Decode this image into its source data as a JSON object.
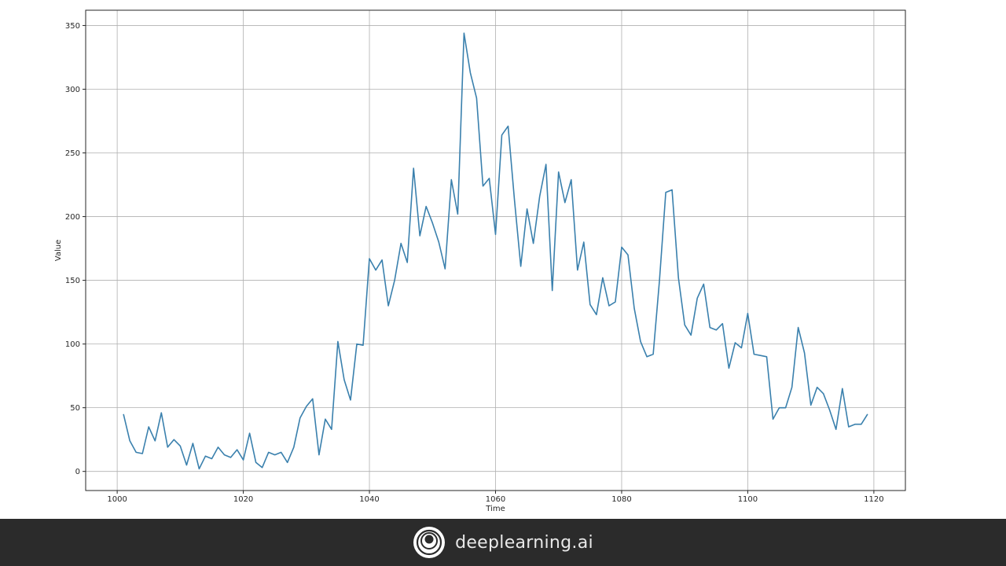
{
  "chart_data": {
    "type": "line",
    "title": "",
    "xlabel": "Time",
    "ylabel": "Value",
    "xlim": [
      995,
      1125
    ],
    "ylim": [
      -15,
      362
    ],
    "xticks": [
      1000,
      1020,
      1040,
      1060,
      1080,
      1100,
      1120
    ],
    "yticks": [
      0,
      50,
      100,
      150,
      200,
      250,
      300,
      350
    ],
    "grid": true,
    "series": [
      {
        "color": "#3a80ad",
        "x": [
          1001,
          1002,
          1003,
          1004,
          1005,
          1006,
          1007,
          1008,
          1009,
          1010,
          1011,
          1012,
          1013,
          1014,
          1015,
          1016,
          1017,
          1018,
          1019,
          1020,
          1021,
          1022,
          1023,
          1024,
          1025,
          1026,
          1027,
          1028,
          1029,
          1030,
          1031,
          1032,
          1033,
          1034,
          1035,
          1036,
          1037,
          1038,
          1039,
          1040,
          1041,
          1042,
          1043,
          1044,
          1045,
          1046,
          1047,
          1048,
          1049,
          1050,
          1051,
          1052,
          1053,
          1054,
          1055,
          1056,
          1057,
          1058,
          1059,
          1060,
          1061,
          1062,
          1063,
          1064,
          1065,
          1066,
          1067,
          1068,
          1069,
          1070,
          1071,
          1072,
          1073,
          1074,
          1075,
          1076,
          1077,
          1078,
          1079,
          1080,
          1081,
          1082,
          1083,
          1084,
          1085,
          1086,
          1087,
          1088,
          1089,
          1090,
          1091,
          1092,
          1093,
          1094,
          1095,
          1096,
          1097,
          1098,
          1099,
          1100,
          1101,
          1102,
          1103,
          1104,
          1105,
          1106,
          1107,
          1108,
          1109,
          1110,
          1111,
          1112,
          1113,
          1114,
          1115,
          1116,
          1117,
          1118,
          1119
        ],
        "y": [
          45,
          24,
          15,
          14,
          35,
          24,
          46,
          19,
          25,
          20,
          5,
          22,
          2,
          12,
          10,
          19,
          13,
          11,
          17,
          9,
          30,
          7,
          3,
          15,
          13,
          15,
          7,
          19,
          42,
          51,
          57,
          13,
          41,
          33,
          102,
          72,
          56,
          100,
          99,
          167,
          158,
          166,
          130,
          150,
          179,
          164,
          238,
          185,
          208,
          195,
          180,
          159,
          229,
          202,
          344,
          313,
          293,
          224,
          230,
          186,
          264,
          271,
          213,
          161,
          206,
          179,
          216,
          241,
          142,
          235,
          211,
          229,
          158,
          180,
          131,
          123,
          152,
          130,
          133,
          176,
          170,
          128,
          102,
          90,
          92,
          150,
          219,
          221,
          152,
          115,
          107,
          136,
          147,
          113,
          111,
          116,
          81,
          101,
          97,
          124,
          92,
          91,
          90,
          41,
          50,
          50,
          66,
          113,
          93,
          52,
          66,
          61,
          48,
          33,
          65,
          35,
          37,
          37,
          45
        ]
      }
    ]
  },
  "footer": {
    "brand_name": "deeplearning.ai",
    "logo_icon": "deeplearning-logo-icon"
  }
}
